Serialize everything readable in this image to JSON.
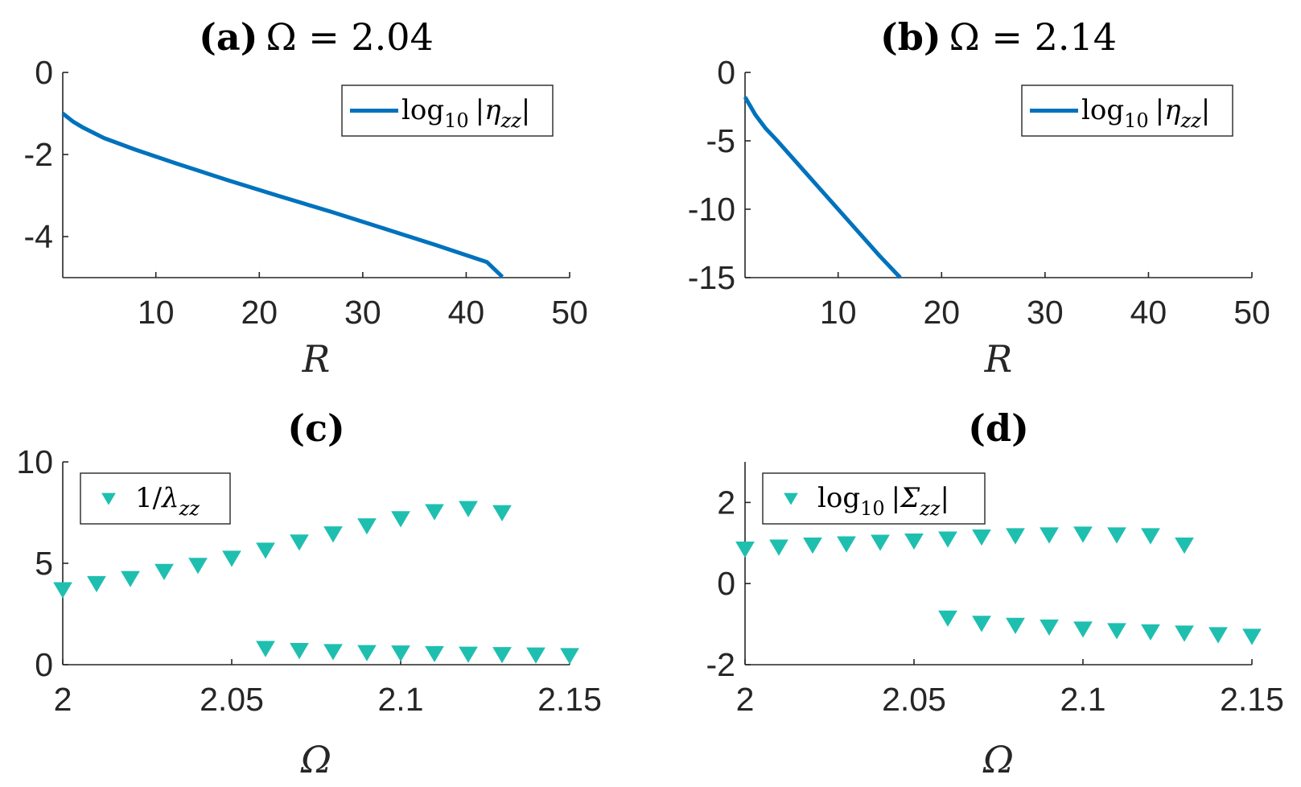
{
  "colors": {
    "line": "#0072BD",
    "marker": "#1FBFB0",
    "axis": "#262626"
  },
  "chart_data": [
    {
      "type": "line",
      "title_bold": "(a)",
      "title_rest": "Ω = 2.04",
      "xlabel": "R",
      "ylabel": "",
      "xlim": [
        1,
        50
      ],
      "ylim": [
        -5,
        0
      ],
      "xticks": [
        10,
        20,
        30,
        40,
        50
      ],
      "xtick_labels": [
        "10",
        "20",
        "30",
        "40",
        "50"
      ],
      "yticks": [
        0,
        -2,
        -4
      ],
      "ytick_labels": [
        "0",
        "-2",
        "-4"
      ],
      "legend": {
        "position": "top-right",
        "label_main": "log",
        "label_sub": "10",
        "label_abs": "|η",
        "label_abs_sub": "zz",
        "label_close": "|"
      },
      "series": [
        {
          "name": "log10 |η_zz|",
          "x": [
            1,
            2,
            3,
            5,
            8,
            12,
            17,
            22,
            27,
            32,
            37,
            42,
            43.5
          ],
          "y": [
            -1.0,
            -1.2,
            -1.35,
            -1.6,
            -1.88,
            -2.22,
            -2.63,
            -3.02,
            -3.4,
            -3.8,
            -4.2,
            -4.62,
            -4.98
          ]
        }
      ]
    },
    {
      "type": "line",
      "title_bold": "(b)",
      "title_rest": "Ω = 2.14",
      "xlabel": "R",
      "ylabel": "",
      "xlim": [
        1,
        50
      ],
      "ylim": [
        -15,
        0
      ],
      "xticks": [
        10,
        20,
        30,
        40,
        50
      ],
      "xtick_labels": [
        "10",
        "20",
        "30",
        "40",
        "50"
      ],
      "yticks": [
        0,
        -5,
        -10,
        -15
      ],
      "ytick_labels": [
        "0",
        "-5",
        "-10",
        "-15"
      ],
      "legend": {
        "position": "top-right",
        "label_main": "log",
        "label_sub": "10",
        "label_abs": "|η",
        "label_abs_sub": "zz",
        "label_close": "|"
      },
      "series": [
        {
          "name": "log10 |η_zz|",
          "x": [
            1,
            2,
            3,
            4,
            6,
            8,
            10,
            12,
            14,
            16
          ],
          "y": [
            -1.8,
            -3.1,
            -4.1,
            -4.9,
            -6.6,
            -8.3,
            -10.0,
            -11.7,
            -13.4,
            -15.0
          ]
        }
      ]
    },
    {
      "type": "scatter",
      "title_bold": "(c)",
      "title_rest": "",
      "xlabel": "Ω",
      "ylabel": "",
      "xlim": [
        2,
        2.15
      ],
      "ylim": [
        0,
        10
      ],
      "xticks": [
        2,
        2.05,
        2.1,
        2.15
      ],
      "xtick_labels": [
        "2",
        "2.05",
        "2.1",
        "2.15"
      ],
      "yticks": [
        10,
        5,
        0
      ],
      "ytick_labels": [
        "10",
        "5",
        "0"
      ],
      "legend": {
        "position": "top-left",
        "label_plain": "1/",
        "label_it": "λ",
        "label_sub": "zz"
      },
      "series": [
        {
          "name": "1/λ_zz (upper)",
          "x": [
            2.0,
            2.01,
            2.02,
            2.03,
            2.04,
            2.05,
            2.06,
            2.07,
            2.08,
            2.09,
            2.1,
            2.11,
            2.12,
            2.13
          ],
          "y": [
            3.7,
            4.0,
            4.25,
            4.6,
            4.9,
            5.25,
            5.65,
            6.05,
            6.45,
            6.85,
            7.2,
            7.55,
            7.7,
            7.5
          ]
        },
        {
          "name": "1/λ_zz (lower)",
          "x": [
            2.06,
            2.07,
            2.08,
            2.09,
            2.1,
            2.11,
            2.12,
            2.13,
            2.14,
            2.15
          ],
          "y": [
            0.8,
            0.7,
            0.65,
            0.6,
            0.58,
            0.55,
            0.52,
            0.5,
            0.48,
            0.45
          ]
        }
      ]
    },
    {
      "type": "scatter",
      "title_bold": "(d)",
      "title_rest": "",
      "xlabel": "Ω",
      "ylabel": "",
      "xlim": [
        2,
        2.15
      ],
      "ylim": [
        -2,
        3
      ],
      "xticks": [
        2,
        2.05,
        2.1,
        2.15
      ],
      "xtick_labels": [
        "2",
        "2.05",
        "2.1",
        "2.15"
      ],
      "yticks": [
        2,
        0,
        -2
      ],
      "ytick_labels": [
        "2",
        "0",
        "-2"
      ],
      "legend": {
        "position": "top-left",
        "label_main": "log",
        "label_sub": "10",
        "label_abs": "|Σ",
        "label_abs_sub": "zz",
        "label_close": "|"
      },
      "series": [
        {
          "name": "log10 |Σ_zz| (upper)",
          "x": [
            2.0,
            2.01,
            2.02,
            2.03,
            2.04,
            2.05,
            2.06,
            2.07,
            2.08,
            2.09,
            2.1,
            2.11,
            2.12,
            2.13
          ],
          "y": [
            0.85,
            0.9,
            0.95,
            0.98,
            1.02,
            1.05,
            1.1,
            1.15,
            1.18,
            1.2,
            1.22,
            1.2,
            1.18,
            0.95
          ]
        },
        {
          "name": "log10 |Σ_zz| (lower)",
          "x": [
            2.06,
            2.07,
            2.08,
            2.09,
            2.1,
            2.11,
            2.12,
            2.13,
            2.14,
            2.15
          ],
          "y": [
            -0.85,
            -0.98,
            -1.03,
            -1.07,
            -1.12,
            -1.16,
            -1.19,
            -1.22,
            -1.26,
            -1.3
          ]
        }
      ]
    }
  ]
}
